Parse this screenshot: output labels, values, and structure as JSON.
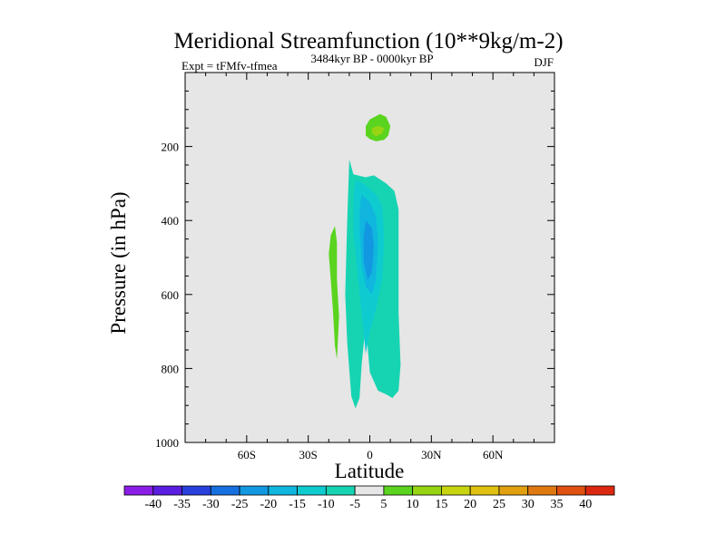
{
  "chart_data": {
    "type": "contour",
    "title": "Meridional Streamfunction (10**9kg/m-2)",
    "left_subtitle": "Expt = tFMfv-tfmea",
    "center_subtitle": "3484kyr BP - 0000kyr BP",
    "right_subtitle": "DJF",
    "xlabel": "Latitude",
    "ylabel": "Pressure (in hPa)",
    "xlim": [
      -90,
      90
    ],
    "ylim": [
      1000,
      0
    ],
    "x_ticks": [
      -60,
      -30,
      0,
      30,
      60
    ],
    "x_tick_labels": [
      "60S",
      "30S",
      "0",
      "30N",
      "60N"
    ],
    "y_ticks": [
      200,
      400,
      600,
      800,
      1000
    ],
    "y_tick_labels": [
      "200",
      "400",
      "600",
      "800",
      "1000"
    ],
    "levels": [
      -40,
      -35,
      -30,
      -25,
      -20,
      -15,
      -10,
      -5,
      5,
      10,
      15,
      20,
      25,
      30,
      35,
      40
    ],
    "level_labels": [
      "-40",
      "-35",
      "-30",
      "-25",
      "-20",
      "-15",
      "-10",
      "-5",
      "5",
      "10",
      "15",
      "20",
      "25",
      "30",
      "35",
      "40"
    ],
    "colors": [
      "#8a1ee6",
      "#5a1ee0",
      "#2840dc",
      "#1670e0",
      "#1298e0",
      "#10b6de",
      "#0ecbd0",
      "#16d4b2",
      "#e6e6e6",
      "#5ad41e",
      "#96d414",
      "#c8d410",
      "#e0c010",
      "#e0a010",
      "#e07810",
      "#e05010",
      "#dc2810"
    ],
    "regions": [
      {
        "name": "main-negative-cell",
        "value": -7.5,
        "points": [
          [
            -10,
            235
          ],
          [
            -8,
            275
          ],
          [
            -2,
            283
          ],
          [
            2,
            278
          ],
          [
            8,
            300
          ],
          [
            12,
            320
          ],
          [
            14,
            370
          ],
          [
            14,
            650
          ],
          [
            15,
            790
          ],
          [
            14,
            860
          ],
          [
            11,
            880
          ],
          [
            8,
            870
          ],
          [
            4,
            860
          ],
          [
            0,
            810
          ],
          [
            -2,
            680
          ],
          [
            -4,
            790
          ],
          [
            -5,
            880
          ],
          [
            -7,
            908
          ],
          [
            -9,
            875
          ],
          [
            -11,
            730
          ],
          [
            -12,
            600
          ],
          [
            -11,
            400
          ]
        ]
      },
      {
        "name": "negative-cell-level-2",
        "value": -12.5,
        "points": [
          [
            -7,
            290
          ],
          [
            -2,
            305
          ],
          [
            3,
            330
          ],
          [
            6,
            360
          ],
          [
            7,
            450
          ],
          [
            6,
            560
          ],
          [
            3,
            640
          ],
          [
            0,
            700
          ],
          [
            -2,
            760
          ],
          [
            -4,
            650
          ],
          [
            -6,
            540
          ],
          [
            -8,
            430
          ],
          [
            -8,
            340
          ]
        ]
      },
      {
        "name": "negative-cell-level-3",
        "value": -17.5,
        "points": [
          [
            -4,
            330
          ],
          [
            0,
            350
          ],
          [
            3,
            390
          ],
          [
            4,
            460
          ],
          [
            3,
            560
          ],
          [
            1,
            600
          ],
          [
            -2,
            580
          ],
          [
            -4,
            520
          ],
          [
            -5,
            430
          ],
          [
            -5,
            370
          ]
        ]
      },
      {
        "name": "negative-cell-core",
        "value": -22.5,
        "points": [
          [
            -2,
            400
          ],
          [
            1,
            420
          ],
          [
            2,
            470
          ],
          [
            1,
            540
          ],
          [
            -1,
            560
          ],
          [
            -3,
            510
          ],
          [
            -3,
            440
          ]
        ]
      },
      {
        "name": "positive-cell-lower",
        "value": 7.5,
        "points": [
          [
            -17,
            415
          ],
          [
            -16,
            460
          ],
          [
            -16,
            560
          ],
          [
            -15,
            660
          ],
          [
            -16,
            775
          ],
          [
            -17,
            740
          ],
          [
            -18,
            640
          ],
          [
            -19,
            560
          ],
          [
            -20,
            490
          ],
          [
            -19,
            440
          ]
        ]
      },
      {
        "name": "positive-cell-upper",
        "value": 7.5,
        "points": [
          [
            0,
            127
          ],
          [
            5,
            112
          ],
          [
            8,
            120
          ],
          [
            10,
            145
          ],
          [
            9,
            170
          ],
          [
            7,
            182
          ],
          [
            3,
            186
          ],
          [
            0,
            180
          ],
          [
            -2,
            170
          ],
          [
            -2,
            145
          ]
        ]
      },
      {
        "name": "positive-cell-upper-core",
        "value": 12.5,
        "points": [
          [
            1,
            150
          ],
          [
            4,
            144
          ],
          [
            7,
            150
          ],
          [
            6,
            165
          ],
          [
            3,
            172
          ],
          [
            1,
            165
          ]
        ]
      }
    ]
  }
}
